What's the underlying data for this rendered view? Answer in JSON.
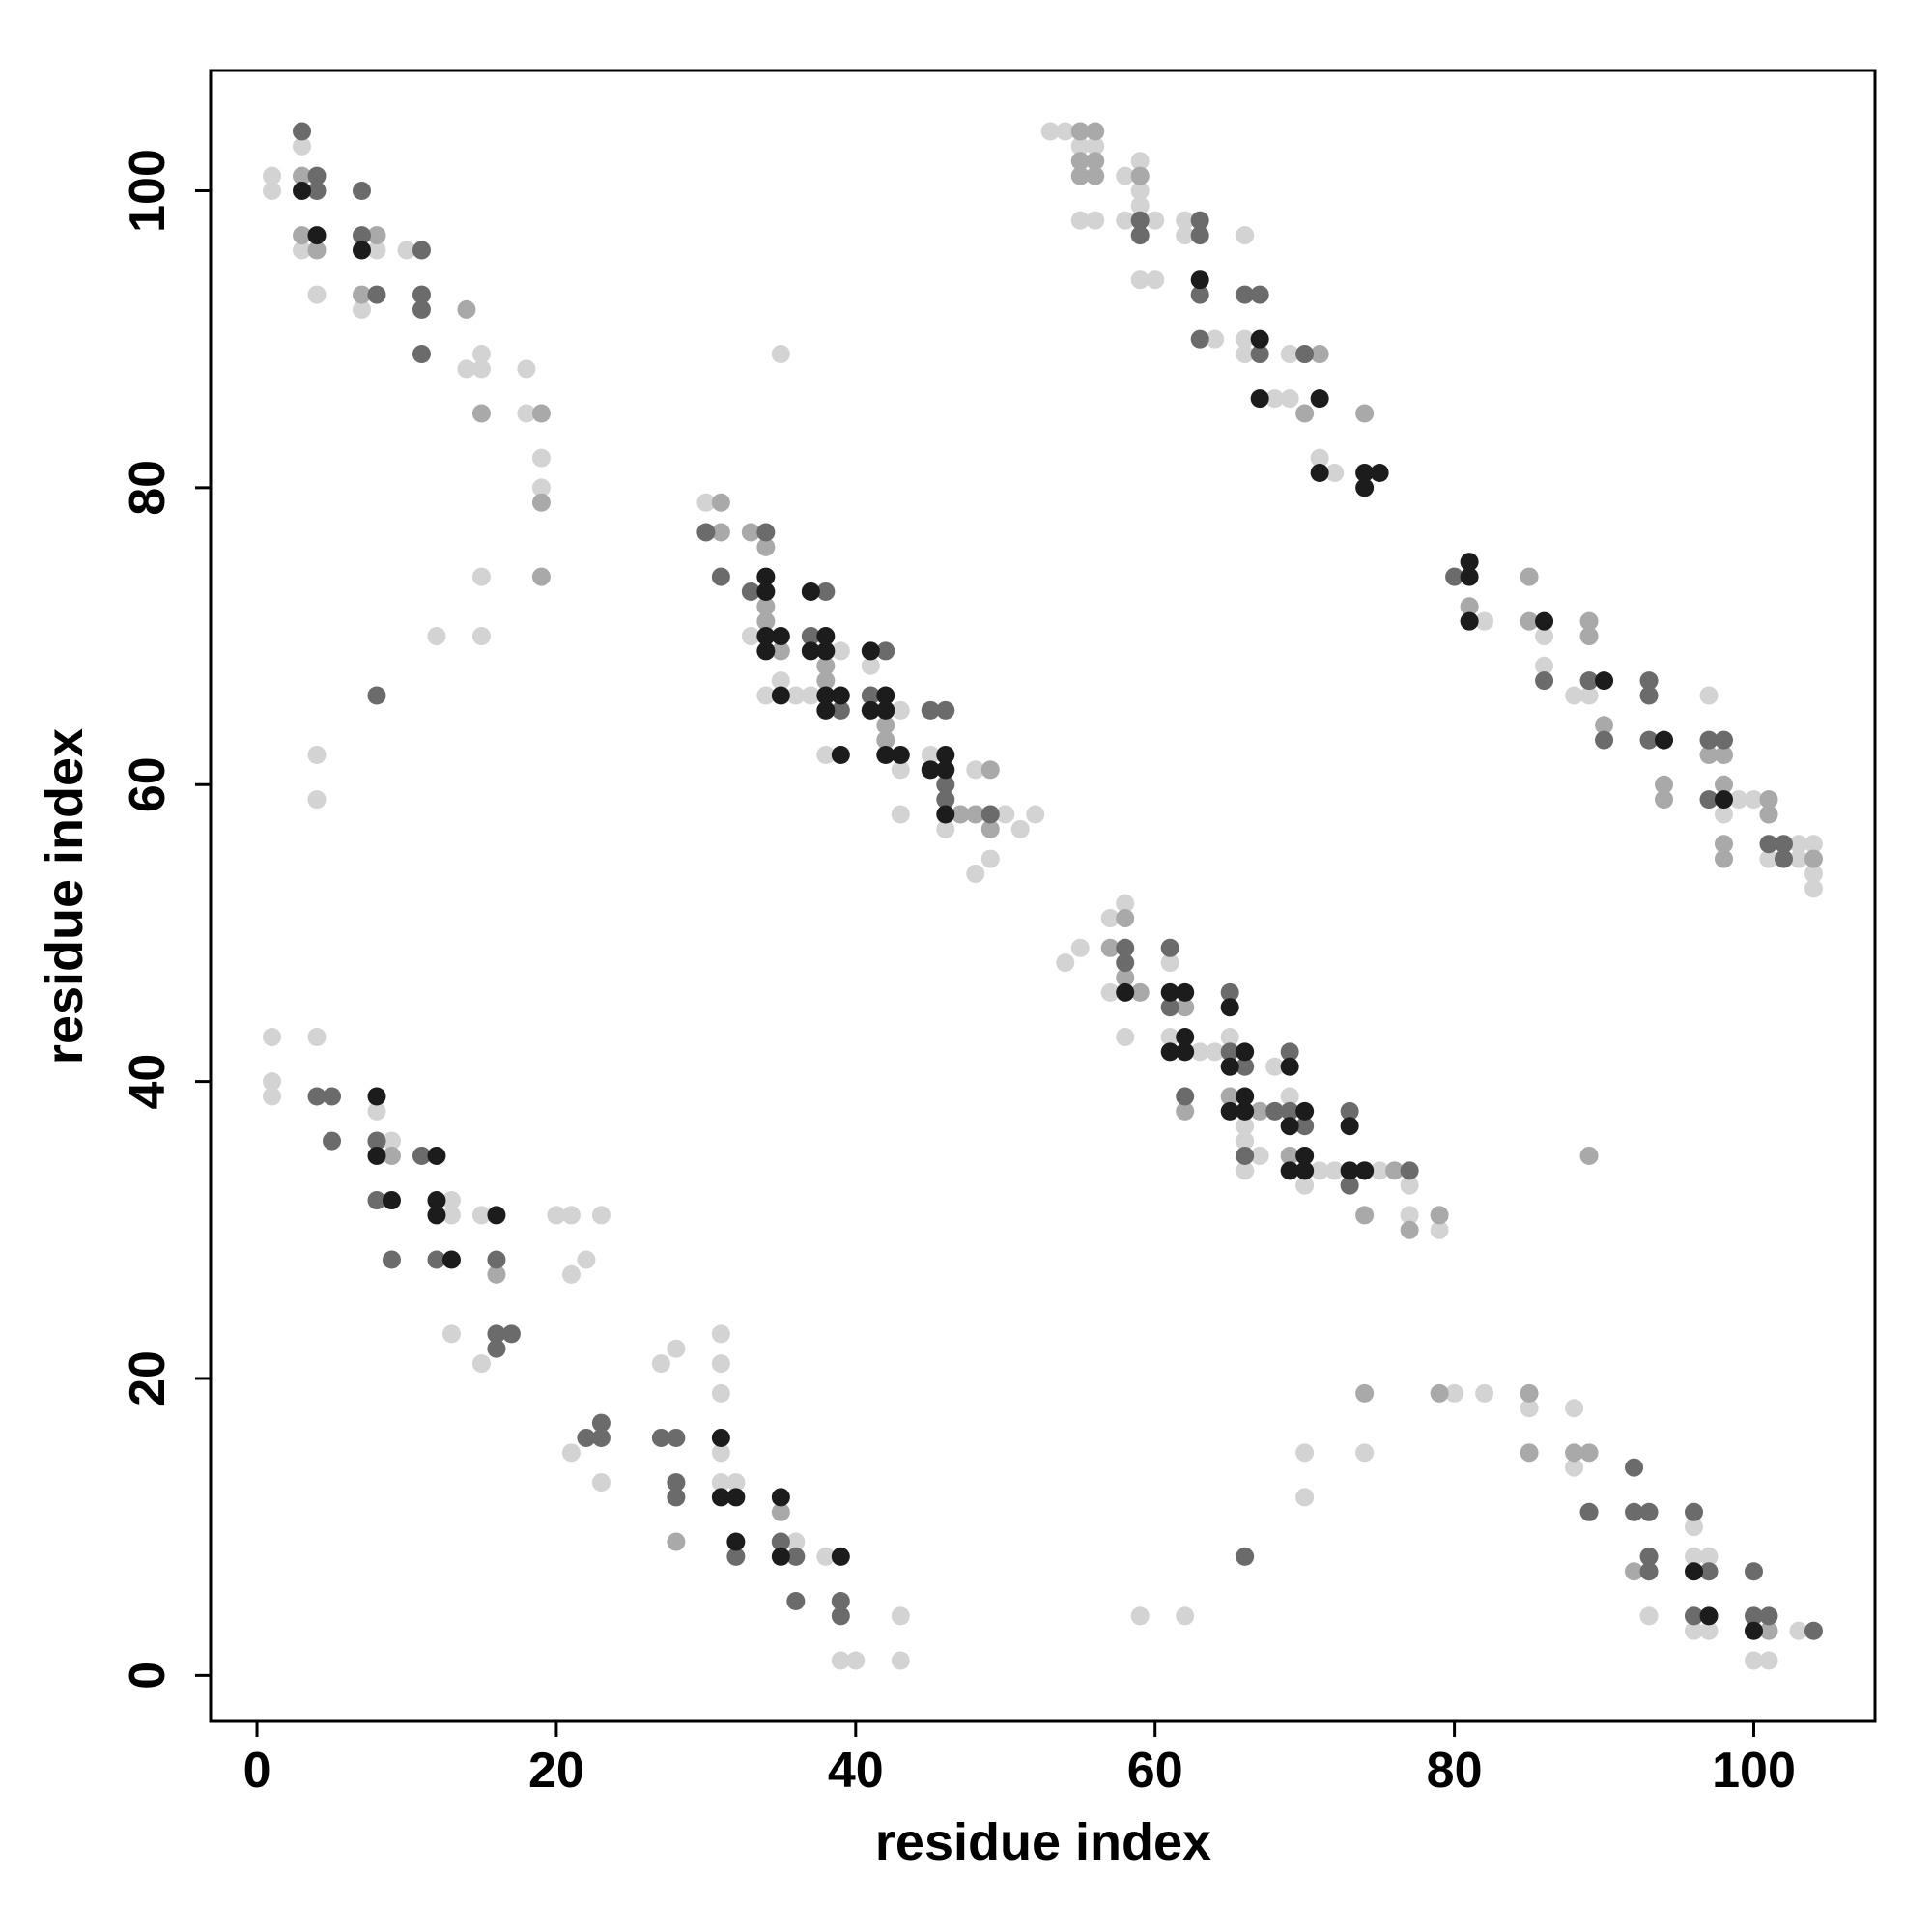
{
  "chart_data": {
    "type": "scatter",
    "x_label": "residue index",
    "y_label": "residue index",
    "xlim": [
      -3.1,
      108.1
    ],
    "ylim": [
      -3.1,
      108.1
    ],
    "xticks": [
      0,
      20,
      40,
      60,
      80,
      100
    ],
    "yticks": [
      0,
      20,
      40,
      60,
      80,
      100
    ],
    "grid": false,
    "series": [
      {
        "color": "#d3d3d3",
        "x": [
          1,
          1,
          3,
          3,
          8,
          10,
          4,
          7,
          14,
          15,
          15,
          18,
          18,
          19,
          19,
          15,
          15,
          12,
          4,
          4,
          35,
          1,
          4,
          1,
          1,
          8,
          9,
          13,
          13,
          15,
          20,
          21,
          23,
          22,
          21,
          13,
          15,
          31,
          31,
          31,
          28,
          27,
          31,
          31,
          32,
          21,
          23,
          38,
          36,
          39,
          40,
          43,
          43,
          30,
          33,
          34,
          36,
          37,
          39,
          41,
          43,
          43,
          43,
          45,
          48,
          46,
          48,
          49,
          50,
          51,
          52,
          35,
          38,
          54,
          55,
          57,
          58,
          57,
          58,
          61,
          61,
          63,
          64,
          65,
          66,
          66,
          66,
          68,
          69,
          67,
          70,
          71,
          72,
          75,
          77,
          77,
          79,
          53,
          54,
          55,
          56,
          55,
          56,
          58,
          58,
          59,
          59,
          59,
          59,
          60,
          60,
          62,
          62,
          64,
          66,
          66,
          66,
          68,
          69,
          69,
          71,
          72,
          82,
          86,
          86,
          88,
          89,
          97,
          98,
          99,
          100,
          101,
          101,
          102,
          103,
          103,
          104,
          104,
          104,
          70,
          70,
          74,
          80,
          82,
          85,
          88,
          88,
          93,
          96,
          96,
          97,
          96,
          97,
          100,
          101,
          103,
          59,
          62
        ],
        "values": [
          101,
          100,
          103,
          96,
          96,
          96,
          93,
          92,
          88,
          89,
          88,
          88,
          85,
          82,
          80,
          74,
          70,
          70,
          62,
          59,
          89,
          43,
          43,
          40,
          39,
          38,
          36,
          32,
          31,
          31,
          31,
          31,
          31,
          28,
          27,
          23,
          21,
          23,
          21,
          19,
          22,
          21,
          15,
          13,
          13,
          15,
          13,
          8,
          9,
          1,
          1,
          4,
          1,
          79,
          70,
          66,
          66,
          66,
          69,
          68,
          65,
          61,
          58,
          62,
          61,
          57,
          54,
          55,
          58,
          57,
          58,
          67,
          62,
          48,
          49,
          51,
          52,
          46,
          43,
          48,
          43,
          42,
          42,
          43,
          37,
          36,
          34,
          41,
          39,
          35,
          33,
          34,
          34,
          34,
          33,
          31,
          30,
          104,
          104,
          103,
          103,
          98,
          98,
          101,
          98,
          102,
          100,
          99,
          94,
          94,
          98,
          98,
          97,
          90,
          97,
          90,
          89,
          86,
          89,
          86,
          82,
          81,
          71,
          70,
          68,
          66,
          66,
          66,
          58,
          59,
          59,
          58,
          55,
          55,
          56,
          55,
          56,
          54,
          53,
          15,
          12,
          15,
          19,
          19,
          18,
          18,
          14,
          4,
          10,
          8,
          8,
          3,
          3,
          1,
          1,
          3,
          4,
          4
        ]
      },
      {
        "color": "#a9a9a9",
        "x": [
          3,
          3,
          4,
          8,
          7,
          14,
          15,
          19,
          19,
          19,
          9,
          8,
          16,
          35,
          28,
          35,
          31,
          31,
          33,
          34,
          34,
          34,
          35,
          38,
          38,
          42,
          42,
          45,
          47,
          49,
          49,
          48,
          57,
          58,
          58,
          59,
          62,
          62,
          65,
          67,
          69,
          73,
          74,
          77,
          79,
          89,
          76,
          55,
          56,
          55,
          55,
          56,
          56,
          59,
          70,
          74,
          70,
          71,
          81,
          85,
          85,
          89,
          89,
          90,
          94,
          94,
          97,
          98,
          98,
          98,
          98,
          101,
          101,
          104,
          74,
          79,
          85,
          85,
          88,
          89,
          96,
          101,
          92
        ],
        "values": [
          101,
          97,
          96,
          97,
          93,
          92,
          85,
          85,
          79,
          74,
          35,
          36,
          27,
          9,
          9,
          11,
          79,
          77,
          77,
          76,
          72,
          71,
          69,
          68,
          67,
          64,
          63,
          61,
          58,
          61,
          57,
          58,
          49,
          51,
          47,
          46,
          45,
          38,
          39,
          38,
          35,
          34,
          31,
          30,
          31,
          35,
          34,
          104,
          104,
          102,
          101,
          102,
          101,
          101,
          85,
          85,
          89,
          89,
          72,
          74,
          71,
          71,
          70,
          64,
          60,
          59,
          62,
          62,
          60,
          56,
          55,
          59,
          58,
          55,
          19,
          19,
          19,
          15,
          15,
          15,
          4,
          3,
          7
        ]
      },
      {
        "color": "#6b6b6b",
        "x": [
          3,
          4,
          4,
          7,
          7,
          11,
          8,
          11,
          11,
          11,
          8,
          4,
          5,
          5,
          8,
          8,
          11,
          9,
          12,
          16,
          16,
          17,
          16,
          22,
          23,
          23,
          27,
          28,
          28,
          28,
          32,
          36,
          36,
          39,
          39,
          35,
          30,
          31,
          34,
          33,
          37,
          38,
          42,
          41,
          39,
          46,
          46,
          46,
          49,
          45,
          58,
          58,
          61,
          61,
          62,
          65,
          65,
          66,
          68,
          69,
          69,
          70,
          73,
          73,
          77,
          74,
          66,
          59,
          59,
          63,
          63,
          63,
          63,
          66,
          67,
          70,
          67,
          80,
          86,
          89,
          90,
          93,
          93,
          93,
          97,
          97,
          98,
          101,
          102,
          102,
          92,
          89,
          92,
          93,
          93,
          93,
          96,
          97,
          100,
          100,
          101,
          104,
          66,
          96
        ],
        "values": [
          104,
          101,
          100,
          100,
          97,
          96,
          93,
          93,
          92,
          89,
          66,
          39,
          39,
          36,
          36,
          32,
          35,
          28,
          28,
          28,
          23,
          23,
          22,
          16,
          16,
          17,
          16,
          16,
          13,
          12,
          8,
          8,
          5,
          5,
          4,
          9,
          77,
          74,
          77,
          73,
          70,
          73,
          69,
          66,
          65,
          65,
          59,
          60,
          58,
          65,
          49,
          48,
          49,
          45,
          39,
          46,
          42,
          41,
          38,
          42,
          38,
          37,
          38,
          33,
          34,
          34,
          35,
          98,
          97,
          98,
          97,
          93,
          90,
          93,
          93,
          89,
          89,
          74,
          67,
          67,
          63,
          67,
          66,
          63,
          63,
          59,
          63,
          56,
          56,
          55,
          14,
          11,
          11,
          11,
          8,
          7,
          11,
          7,
          7,
          4,
          4,
          3,
          8,
          4
        ]
      },
      {
        "color": "#1c1c1c",
        "x": [
          3,
          4,
          7,
          8,
          8,
          12,
          9,
          12,
          12,
          13,
          16,
          31,
          31,
          32,
          35,
          32,
          35,
          39,
          34,
          34,
          34,
          35,
          34,
          37,
          37,
          38,
          38,
          38,
          38,
          39,
          35,
          39,
          41,
          41,
          42,
          42,
          42,
          43,
          45,
          46,
          46,
          46,
          58,
          61,
          62,
          61,
          62,
          62,
          65,
          65,
          65,
          66,
          66,
          66,
          69,
          69,
          70,
          69,
          70,
          70,
          73,
          73,
          74,
          63,
          67,
          67,
          71,
          71,
          74,
          75,
          74,
          81,
          81,
          81,
          86,
          90,
          94,
          98,
          96,
          97,
          100
        ],
        "values": [
          100,
          97,
          96,
          39,
          35,
          35,
          32,
          32,
          31,
          28,
          31,
          16,
          12,
          12,
          12,
          9,
          8,
          8,
          74,
          73,
          70,
          70,
          69,
          73,
          69,
          70,
          69,
          66,
          65,
          66,
          66,
          62,
          69,
          65,
          66,
          65,
          62,
          62,
          61,
          62,
          61,
          58,
          46,
          46,
          46,
          42,
          43,
          42,
          45,
          41,
          38,
          42,
          39,
          38,
          41,
          37,
          38,
          34,
          35,
          34,
          37,
          34,
          34,
          94,
          90,
          86,
          86,
          81,
          81,
          81,
          80,
          75,
          74,
          71,
          71,
          67,
          63,
          59,
          7,
          4,
          3
        ]
      }
    ]
  }
}
